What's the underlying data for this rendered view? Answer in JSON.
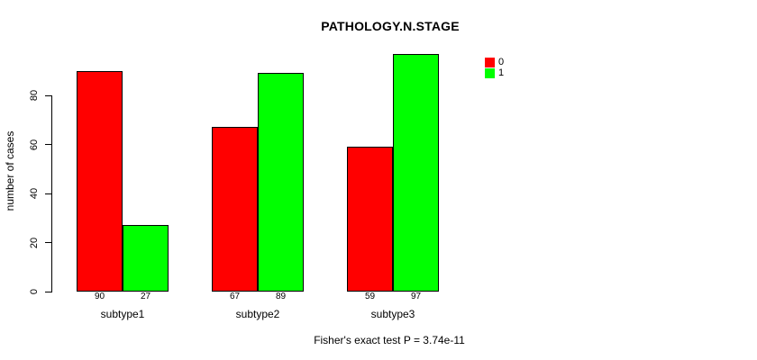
{
  "chart_data": {
    "type": "bar",
    "grouped": true,
    "title": "PATHOLOGY.N.STAGE",
    "xlabel": "",
    "ylabel": "number of cases",
    "categories": [
      "subtype1",
      "subtype2",
      "subtype3"
    ],
    "series": [
      {
        "name": "0",
        "color": "#FF0000",
        "values": [
          90,
          67,
          59
        ]
      },
      {
        "name": "1",
        "color": "#00FF00",
        "values": [
          27,
          89,
          97
        ]
      }
    ],
    "bar_value_labels": [
      [
        90,
        27
      ],
      [
        67,
        89
      ],
      [
        59,
        97
      ]
    ],
    "yticks": [
      0,
      20,
      40,
      60,
      80
    ],
    "ylim": [
      0,
      97
    ],
    "grid": false,
    "legend_position": "top-right",
    "annotation": "Fisher's exact test P = 3.74e-11"
  },
  "colors": {
    "background": "#FFFFFF",
    "axis": "#000000",
    "text": "#000000",
    "series0": "#FF0000",
    "series1": "#00FF00"
  }
}
